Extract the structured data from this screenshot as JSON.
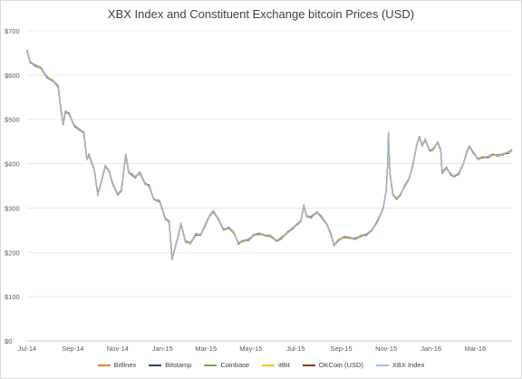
{
  "chart_data": {
    "type": "line",
    "title": "XBX Index and Constituent Exchange bitcoin Prices (USD)",
    "xlabel": "",
    "ylabel": "",
    "ylim": [
      0,
      700
    ],
    "yticks": [
      "$0",
      "$100",
      "$200",
      "$300",
      "$400",
      "$500",
      "$600",
      "$700"
    ],
    "ytick_values": [
      0,
      100,
      200,
      300,
      400,
      500,
      600,
      700
    ],
    "xticks": [
      "Jul-14",
      "Sep-14",
      "Nov-14",
      "Jan-15",
      "Mar-15",
      "May-15",
      "Jul-15",
      "Sep-15",
      "Nov-15",
      "Jan-16",
      "Mar-16"
    ],
    "xtick_values": [
      "2014-07-01",
      "2014-09-01",
      "2014-11-01",
      "2015-01-01",
      "2015-03-01",
      "2015-05-01",
      "2015-07-01",
      "2015-09-01",
      "2015-11-01",
      "2016-01-01",
      "2016-03-01"
    ],
    "xlim": [
      "2014-07-01",
      "2016-04-20"
    ],
    "grid": "horizontal",
    "legend_position": "bottom",
    "index_points": [
      [
        "2014-07-01",
        655
      ],
      [
        "2014-07-05",
        630
      ],
      [
        "2014-07-12",
        622
      ],
      [
        "2014-07-20",
        615
      ],
      [
        "2014-07-28",
        595
      ],
      [
        "2014-08-05",
        588
      ],
      [
        "2014-08-12",
        575
      ],
      [
        "2014-08-16",
        520
      ],
      [
        "2014-08-19",
        490
      ],
      [
        "2014-08-22",
        518
      ],
      [
        "2014-08-27",
        512
      ],
      [
        "2014-09-03",
        485
      ],
      [
        "2014-09-10",
        478
      ],
      [
        "2014-09-16",
        470
      ],
      [
        "2014-09-20",
        410
      ],
      [
        "2014-09-23",
        420
      ],
      [
        "2014-09-30",
        388
      ],
      [
        "2014-10-05",
        330
      ],
      [
        "2014-10-10",
        360
      ],
      [
        "2014-10-15",
        395
      ],
      [
        "2014-10-20",
        385
      ],
      [
        "2014-10-25",
        355
      ],
      [
        "2014-11-01",
        330
      ],
      [
        "2014-11-06",
        340
      ],
      [
        "2014-11-12",
        420
      ],
      [
        "2014-11-16",
        380
      ],
      [
        "2014-11-20",
        375
      ],
      [
        "2014-11-25",
        370
      ],
      [
        "2014-12-01",
        380
      ],
      [
        "2014-12-08",
        355
      ],
      [
        "2014-12-14",
        350
      ],
      [
        "2014-12-20",
        320
      ],
      [
        "2014-12-28",
        315
      ],
      [
        "2015-01-05",
        275
      ],
      [
        "2015-01-10",
        270
      ],
      [
        "2015-01-14",
        185
      ],
      [
        "2015-01-18",
        210
      ],
      [
        "2015-01-22",
        235
      ],
      [
        "2015-01-26",
        265
      ],
      [
        "2015-02-01",
        225
      ],
      [
        "2015-02-08",
        220
      ],
      [
        "2015-02-15",
        240
      ],
      [
        "2015-02-22",
        240
      ],
      [
        "2015-03-01",
        265
      ],
      [
        "2015-03-06",
        282
      ],
      [
        "2015-03-11",
        293
      ],
      [
        "2015-03-18",
        275
      ],
      [
        "2015-03-25",
        250
      ],
      [
        "2015-04-01",
        255
      ],
      [
        "2015-04-08",
        245
      ],
      [
        "2015-04-14",
        220
      ],
      [
        "2015-04-20",
        225
      ],
      [
        "2015-04-28",
        228
      ],
      [
        "2015-05-05",
        240
      ],
      [
        "2015-05-12",
        242
      ],
      [
        "2015-05-20",
        238
      ],
      [
        "2015-05-28",
        237
      ],
      [
        "2015-06-05",
        226
      ],
      [
        "2015-06-12",
        232
      ],
      [
        "2015-06-20",
        245
      ],
      [
        "2015-06-27",
        255
      ],
      [
        "2015-07-04",
        265
      ],
      [
        "2015-07-08",
        270
      ],
      [
        "2015-07-12",
        305
      ],
      [
        "2015-07-16",
        282
      ],
      [
        "2015-07-22",
        280
      ],
      [
        "2015-07-30",
        290
      ],
      [
        "2015-08-05",
        280
      ],
      [
        "2015-08-12",
        265
      ],
      [
        "2015-08-18",
        240
      ],
      [
        "2015-08-22",
        215
      ],
      [
        "2015-08-28",
        228
      ],
      [
        "2015-09-05",
        235
      ],
      [
        "2015-09-12",
        232
      ],
      [
        "2015-09-20",
        230
      ],
      [
        "2015-09-28",
        238
      ],
      [
        "2015-10-05",
        240
      ],
      [
        "2015-10-12",
        248
      ],
      [
        "2015-10-20",
        270
      ],
      [
        "2015-10-28",
        300
      ],
      [
        "2015-11-01",
        340
      ],
      [
        "2015-11-03",
        400
      ],
      [
        "2015-11-04",
        470
      ],
      [
        "2015-11-06",
        380
      ],
      [
        "2015-11-10",
        330
      ],
      [
        "2015-11-15",
        320
      ],
      [
        "2015-11-20",
        330
      ],
      [
        "2015-11-26",
        350
      ],
      [
        "2015-12-02",
        365
      ],
      [
        "2015-12-07",
        395
      ],
      [
        "2015-12-12",
        440
      ],
      [
        "2015-12-16",
        460
      ],
      [
        "2015-12-20",
        440
      ],
      [
        "2015-12-24",
        455
      ],
      [
        "2015-12-30",
        430
      ],
      [
        "2016-01-04",
        432
      ],
      [
        "2016-01-10",
        448
      ],
      [
        "2016-01-14",
        432
      ],
      [
        "2016-01-16",
        380
      ],
      [
        "2016-01-22",
        390
      ],
      [
        "2016-01-28",
        375
      ],
      [
        "2016-02-02",
        372
      ],
      [
        "2016-02-08",
        378
      ],
      [
        "2016-02-14",
        400
      ],
      [
        "2016-02-18",
        425
      ],
      [
        "2016-02-22",
        440
      ],
      [
        "2016-02-27",
        425
      ],
      [
        "2016-03-05",
        410
      ],
      [
        "2016-03-10",
        415
      ],
      [
        "2016-03-18",
        415
      ],
      [
        "2016-03-25",
        420
      ],
      [
        "2016-04-01",
        418
      ],
      [
        "2016-04-08",
        422
      ],
      [
        "2016-04-15",
        425
      ],
      [
        "2016-04-20",
        430
      ]
    ],
    "series": [
      {
        "name": "Bitfinex",
        "color": "#ed7d31",
        "end": "2016-04-20"
      },
      {
        "name": "Bitstamp",
        "color": "#264478",
        "end": "2016-04-20"
      },
      {
        "name": "Coinbase",
        "color": "#70ad47",
        "end": "2015-02-25"
      },
      {
        "name": "itBit",
        "color": "#ffc000",
        "end": "2016-04-20"
      },
      {
        "name": "OKCoin (USD)",
        "color": "#843c0c",
        "end": "2016-04-20"
      },
      {
        "name": "XBX Index",
        "color": "#9dc3e6",
        "end": "2016-04-20"
      }
    ]
  }
}
